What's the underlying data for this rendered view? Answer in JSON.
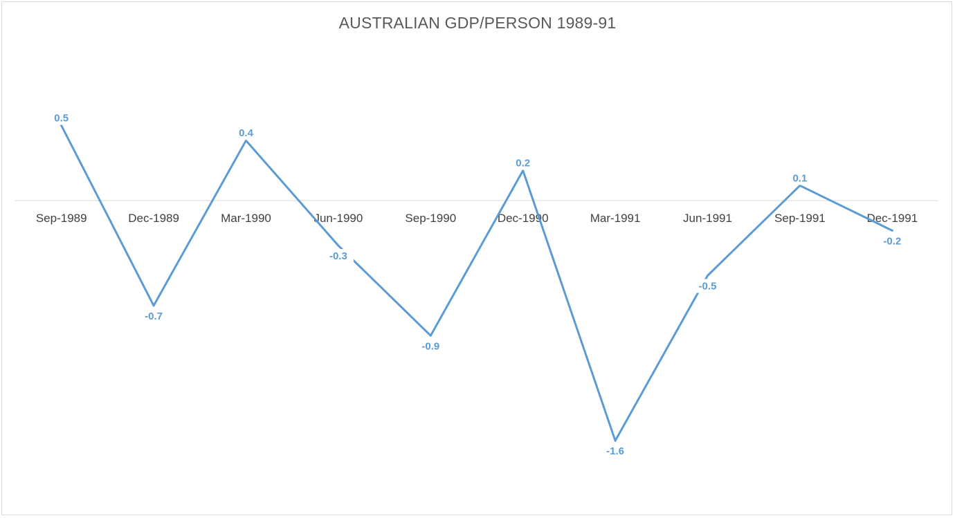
{
  "chart_data": {
    "type": "line",
    "title": "AUSTRALIAN GDP/PERSON 1989-91",
    "xlabel": "",
    "ylabel": "",
    "categories": [
      "Sep-1989",
      "Dec-1989",
      "Mar-1990",
      "Jun-1990",
      "Sep-1990",
      "Dec-1990",
      "Mar-1991",
      "Jun-1991",
      "Sep-1991",
      "Dec-1991"
    ],
    "series": [
      {
        "values": [
          0.5,
          -0.7,
          0.4,
          -0.3,
          -0.9,
          0.2,
          -1.6,
          -0.5,
          0.1,
          -0.2
        ],
        "color": "#5b9bd5"
      }
    ],
    "data_labels": [
      "0.5",
      "-0.7",
      "0.4",
      "-0.3",
      "-0.9",
      "0.2",
      "-1.6",
      "-0.5",
      "0.1",
      "-0.2"
    ],
    "ylim": [
      -2.0,
      1.0
    ],
    "grid": false,
    "legend": "none",
    "axis_color": "#d9d9d9"
  }
}
